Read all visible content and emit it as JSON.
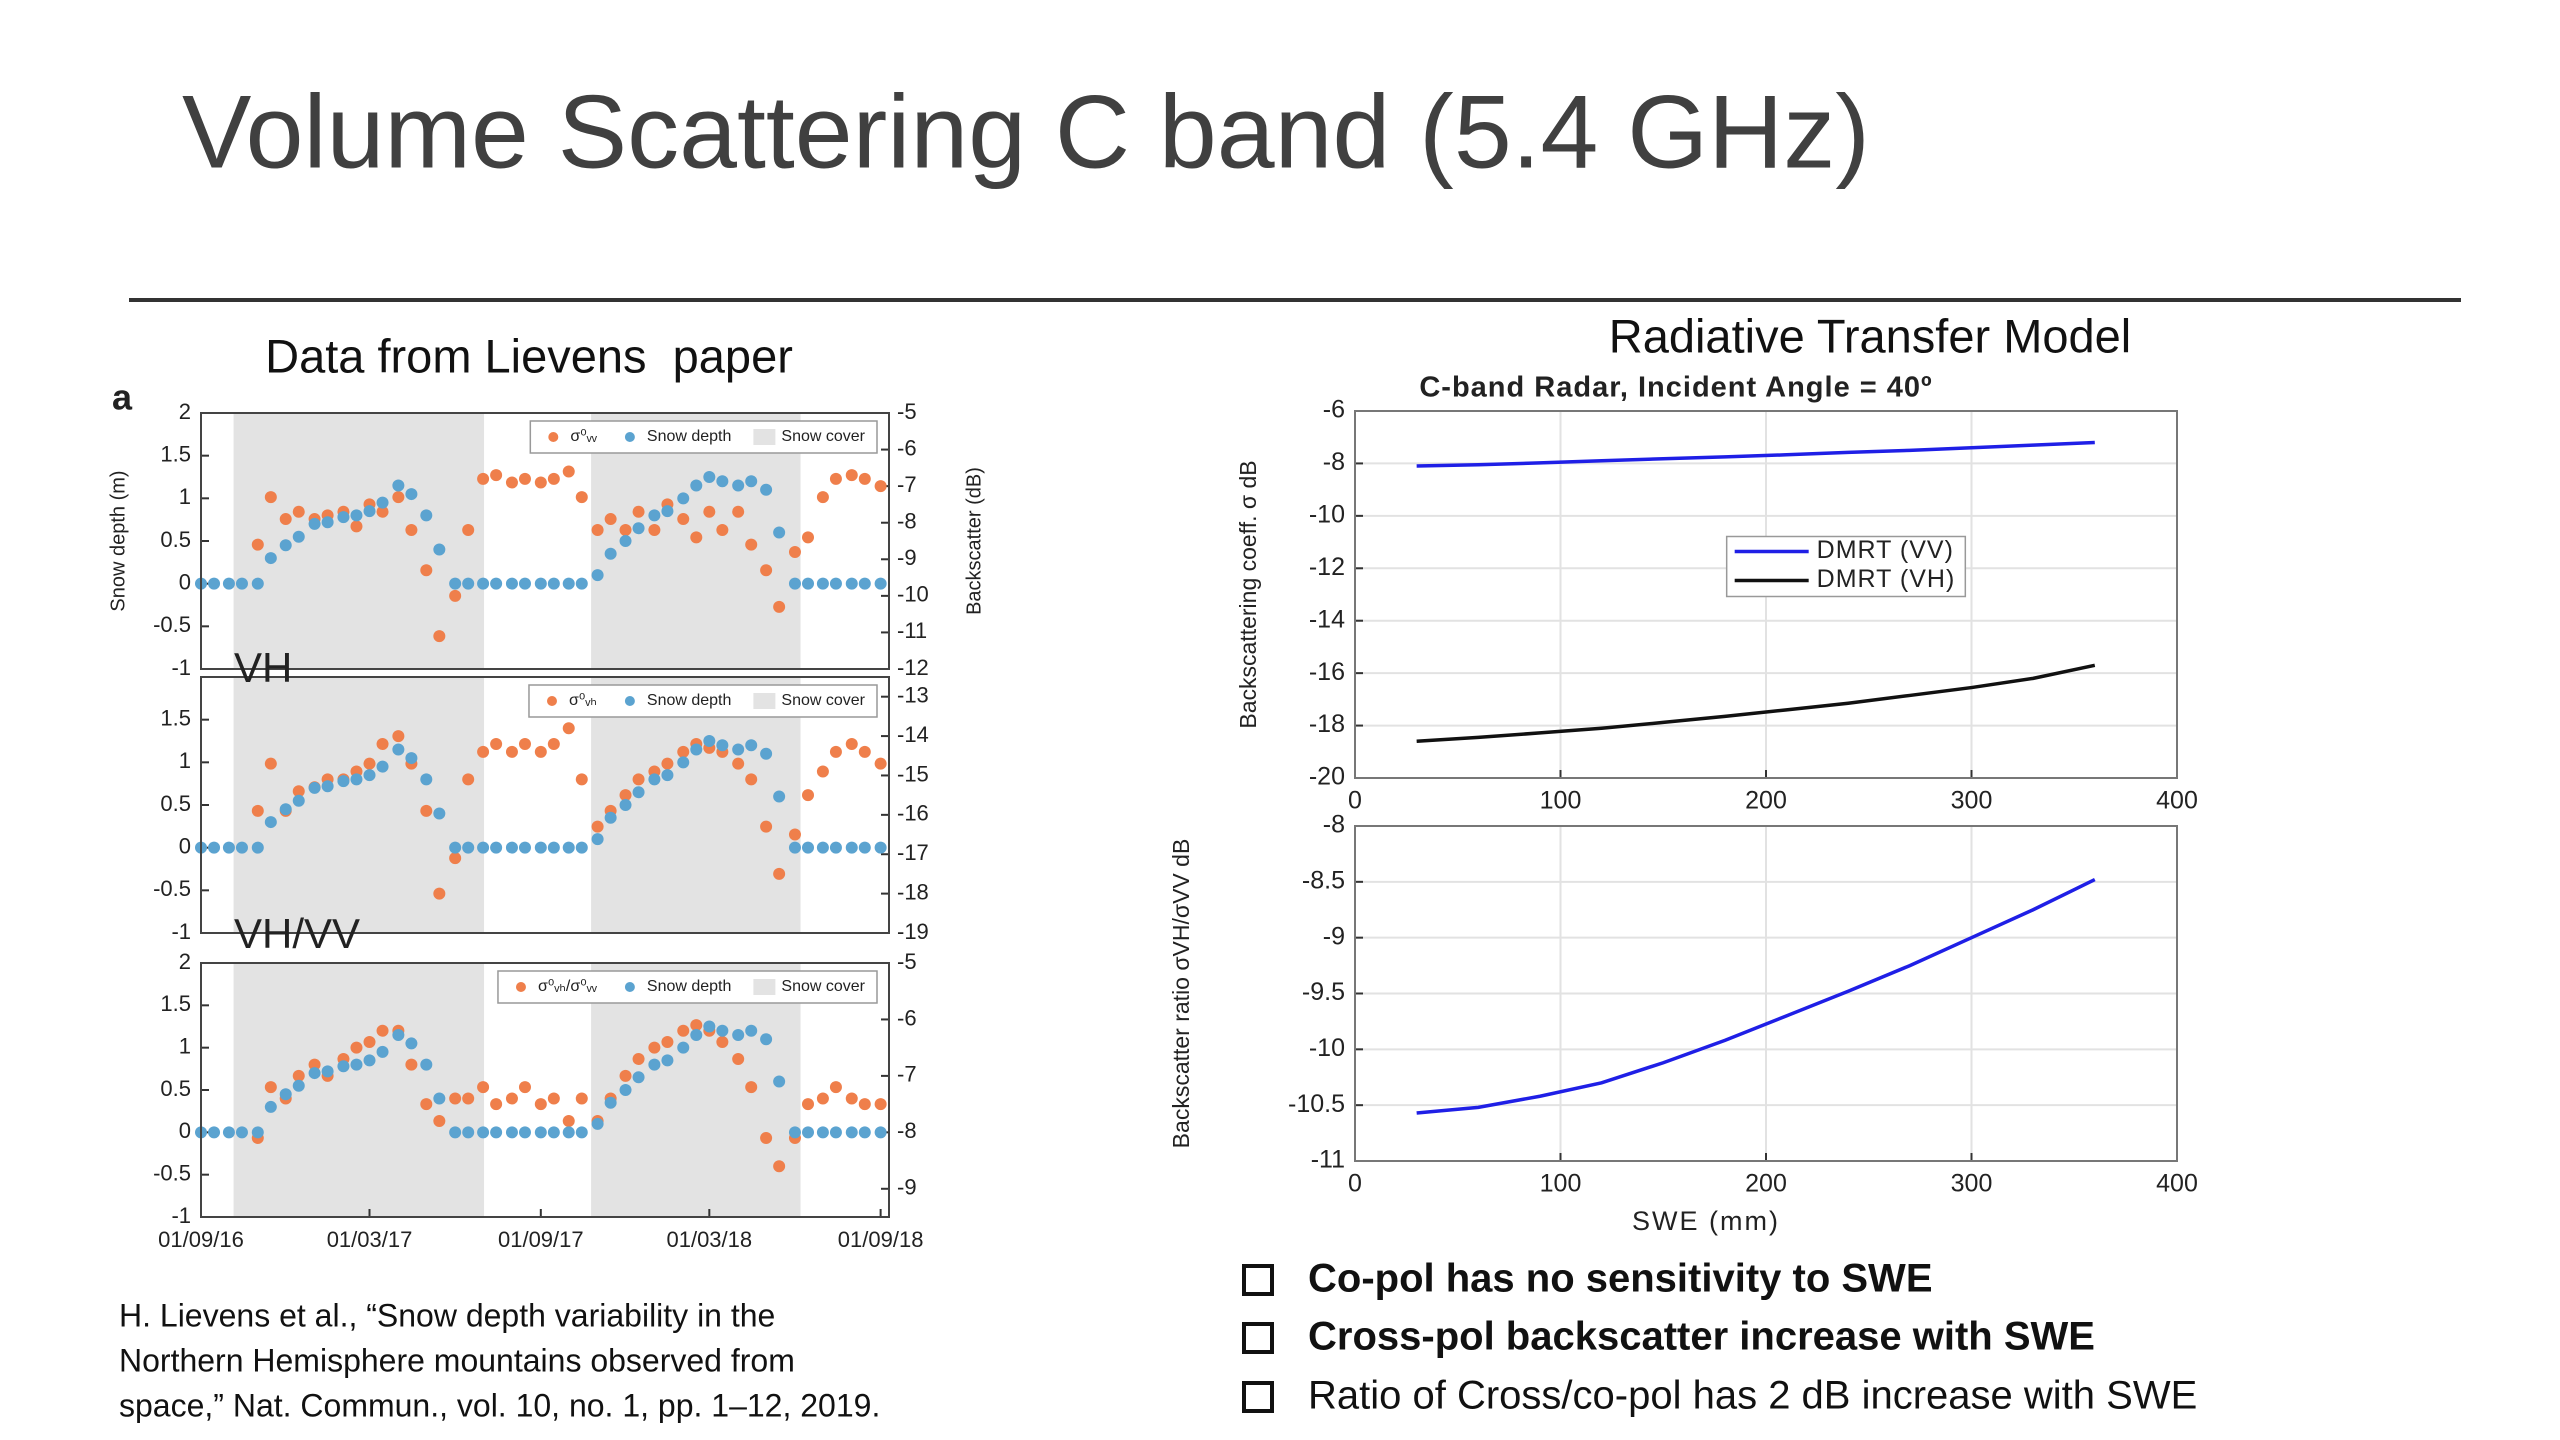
{
  "title": "Volume Scattering C band (5.4 GHz)",
  "left_heading": "Data from Lievens  paper",
  "right_heading": "Radiative Transfer Model",
  "citation": [
    "H. Lievens et al., “Snow depth variability in the",
    "Northern Hemisphere mountains observed from",
    "space,” Nat. Commun., vol. 10, no. 1, pp. 1–12, 2019."
  ],
  "bullets": [
    "Co-pol has no sensitivity to SWE",
    "Cross-pol backscatter increase with SWE",
    "Ratio of Cross/co-pol has 2 dB increase with SWE"
  ],
  "chart_data": [
    {
      "type": "scatter",
      "panel_label": "a",
      "ylabel": "Snow depth (m)",
      "y2label": "Backscatter (dB)",
      "x": [
        "2016-09-01",
        "2016-09-15",
        "2016-10-01",
        "2016-10-15",
        "2016-11-01",
        "2016-11-15",
        "2016-12-01",
        "2016-12-15",
        "2017-01-01",
        "2017-01-15",
        "2017-02-01",
        "2017-02-15",
        "2017-03-01",
        "2017-03-15",
        "2017-04-01",
        "2017-04-15",
        "2017-05-01",
        "2017-05-15",
        "2017-06-01",
        "2017-06-15",
        "2017-07-01",
        "2017-07-15",
        "2017-08-01",
        "2017-08-15",
        "2017-09-01",
        "2017-09-15",
        "2017-10-01",
        "2017-10-15",
        "2017-11-01",
        "2017-11-15",
        "2017-12-01",
        "2017-12-15",
        "2018-01-01",
        "2018-01-15",
        "2018-02-01",
        "2018-02-15",
        "2018-03-01",
        "2018-03-15",
        "2018-04-01",
        "2018-04-15",
        "2018-05-01",
        "2018-05-15",
        "2018-06-01",
        "2018-06-15",
        "2018-07-01",
        "2018-07-15",
        "2018-08-01",
        "2018-08-15",
        "2018-09-01"
      ],
      "xlim": [
        "2016-09-01",
        "2018-09-10"
      ],
      "ylim": [
        -1,
        2
      ],
      "yticks": [
        -1,
        -0.5,
        0,
        0.5,
        1,
        1.5,
        2
      ],
      "y2lim": [
        -12,
        -5
      ],
      "y2ticks": [
        -12,
        -11,
        -10,
        -9,
        -8,
        -7,
        -6,
        -5
      ],
      "legend": "upper right",
      "snow_cover": {
        "name": "Snow cover",
        "color": "#e3e3e3",
        "periods": [
          [
            "2016-10-06",
            "2017-07-02"
          ],
          [
            "2017-10-25",
            "2018-06-07"
          ]
        ]
      },
      "series": [
        {
          "name": "σ⁰ᵥᵥ",
          "color": "#ef7f4b",
          "axis": "y2",
          "values": [
            null,
            null,
            null,
            null,
            -8.6,
            -7.3,
            -7.9,
            -7.7,
            -7.9,
            -7.8,
            -7.7,
            -8.1,
            -7.5,
            -7.7,
            -7.3,
            -8.2,
            -9.3,
            -11.1,
            -10.0,
            -8.2,
            -6.8,
            -6.7,
            -6.9,
            -6.8,
            -6.9,
            -6.8,
            -6.6,
            -7.3,
            -8.2,
            -7.9,
            -8.2,
            -7.7,
            -8.2,
            -7.5,
            -7.9,
            -8.4,
            -7.7,
            -8.2,
            -7.7,
            -8.6,
            -9.3,
            -10.3,
            -8.8,
            -8.4,
            -7.3,
            -6.8,
            -6.7,
            -6.8,
            -7.0
          ]
        },
        {
          "name": "Snow depth",
          "color": "#5ba3d0",
          "values": [
            0,
            0,
            0,
            0,
            0,
            0.3,
            0.45,
            0.55,
            0.7,
            0.72,
            0.78,
            0.8,
            0.85,
            0.95,
            1.15,
            1.05,
            0.8,
            0.4,
            0,
            0,
            0,
            0,
            0,
            0,
            0,
            0,
            0,
            0,
            0.1,
            0.35,
            0.5,
            0.65,
            0.8,
            0.85,
            1.0,
            1.15,
            1.25,
            1.2,
            1.15,
            1.2,
            1.1,
            0.6,
            0,
            0,
            0,
            0,
            0,
            0,
            0
          ]
        }
      ]
    },
    {
      "type": "scatter",
      "panel_label": "VH",
      "x": [
        "2016-09-01",
        "2016-09-15",
        "2016-10-01",
        "2016-10-15",
        "2016-11-01",
        "2016-11-15",
        "2016-12-01",
        "2016-12-15",
        "2017-01-01",
        "2017-01-15",
        "2017-02-01",
        "2017-02-15",
        "2017-03-01",
        "2017-03-15",
        "2017-04-01",
        "2017-04-15",
        "2017-05-01",
        "2017-05-15",
        "2017-06-01",
        "2017-06-15",
        "2017-07-01",
        "2017-07-15",
        "2017-08-01",
        "2017-08-15",
        "2017-09-01",
        "2017-09-15",
        "2017-10-01",
        "2017-10-15",
        "2017-11-01",
        "2017-11-15",
        "2017-12-01",
        "2017-12-15",
        "2018-01-01",
        "2018-01-15",
        "2018-02-01",
        "2018-02-15",
        "2018-03-01",
        "2018-03-15",
        "2018-04-01",
        "2018-04-15",
        "2018-05-01",
        "2018-05-15",
        "2018-06-01",
        "2018-06-15",
        "2018-07-01",
        "2018-07-15",
        "2018-08-01",
        "2018-08-15",
        "2018-09-01"
      ],
      "xlim": [
        "2016-09-01",
        "2018-09-10"
      ],
      "ylim": [
        -1,
        2
      ],
      "yticks": [
        -1,
        -0.5,
        0,
        0.5,
        1,
        1.5
      ],
      "y2lim": [
        -19,
        -12.5
      ],
      "y2ticks": [
        -19,
        -18,
        -17,
        -16,
        -15,
        -14,
        -13
      ],
      "legend": "upper right",
      "snow_cover": {
        "name": "Snow cover",
        "color": "#e3e3e3",
        "periods": [
          [
            "2016-10-06",
            "2017-07-02"
          ],
          [
            "2017-10-25",
            "2018-06-07"
          ]
        ]
      },
      "series": [
        {
          "name": "σ⁰ᵥₕ",
          "color": "#ef7f4b",
          "axis": "y2",
          "values": [
            null,
            null,
            null,
            null,
            -15.9,
            -14.7,
            -15.9,
            -15.4,
            -15.3,
            -15.1,
            -15.1,
            -14.9,
            -14.7,
            -14.2,
            -14.0,
            -14.7,
            -15.9,
            -18.0,
            -17.1,
            -15.1,
            -14.4,
            -14.2,
            -14.4,
            -14.2,
            -14.4,
            -14.2,
            -13.8,
            -15.1,
            -16.3,
            -15.9,
            -15.5,
            -15.1,
            -14.9,
            -14.7,
            -14.4,
            -14.2,
            -14.3,
            -14.4,
            -14.7,
            -15.1,
            -16.3,
            -17.5,
            -16.5,
            -15.5,
            -14.9,
            -14.4,
            -14.2,
            -14.4,
            -14.7
          ]
        },
        {
          "name": "Snow depth",
          "color": "#5ba3d0",
          "values": [
            0,
            0,
            0,
            0,
            0,
            0.3,
            0.45,
            0.55,
            0.7,
            0.72,
            0.78,
            0.8,
            0.85,
            0.95,
            1.15,
            1.05,
            0.8,
            0.4,
            0,
            0,
            0,
            0,
            0,
            0,
            0,
            0,
            0,
            0,
            0.1,
            0.35,
            0.5,
            0.65,
            0.8,
            0.85,
            1.0,
            1.15,
            1.25,
            1.2,
            1.15,
            1.2,
            1.1,
            0.6,
            0,
            0,
            0,
            0,
            0,
            0,
            0
          ]
        }
      ]
    },
    {
      "type": "scatter",
      "panel_label": "VH/VV",
      "x": [
        "2016-09-01",
        "2016-09-15",
        "2016-10-01",
        "2016-10-15",
        "2016-11-01",
        "2016-11-15",
        "2016-12-01",
        "2016-12-15",
        "2017-01-01",
        "2017-01-15",
        "2017-02-01",
        "2017-02-15",
        "2017-03-01",
        "2017-03-15",
        "2017-04-01",
        "2017-04-15",
        "2017-05-01",
        "2017-05-15",
        "2017-06-01",
        "2017-06-15",
        "2017-07-01",
        "2017-07-15",
        "2017-08-01",
        "2017-08-15",
        "2017-09-01",
        "2017-09-15",
        "2017-10-01",
        "2017-10-15",
        "2017-11-01",
        "2017-11-15",
        "2017-12-01",
        "2017-12-15",
        "2018-01-01",
        "2018-01-15",
        "2018-02-01",
        "2018-02-15",
        "2018-03-01",
        "2018-03-15",
        "2018-04-01",
        "2018-04-15",
        "2018-05-01",
        "2018-05-15",
        "2018-06-01",
        "2018-06-15",
        "2018-07-01",
        "2018-07-15",
        "2018-08-01",
        "2018-08-15",
        "2018-09-01"
      ],
      "xlim": [
        "2016-09-01",
        "2018-09-10"
      ],
      "xticks": [
        {
          "value": "2016-09-01",
          "label": "01/09/16"
        },
        {
          "value": "2017-03-01",
          "label": "01/03/17"
        },
        {
          "value": "2017-09-01",
          "label": "01/09/17"
        },
        {
          "value": "2018-03-01",
          "label": "01/03/18"
        },
        {
          "value": "2018-09-01",
          "label": "01/09/18"
        }
      ],
      "ylim": [
        -1,
        2
      ],
      "yticks": [
        -1,
        -0.5,
        0,
        0.5,
        1,
        1.5,
        2
      ],
      "y2lim": [
        -9.5,
        -5
      ],
      "y2ticks": [
        -9,
        -8,
        -7,
        -6,
        -5
      ],
      "legend": "upper right",
      "snow_cover": {
        "name": "Snow cover",
        "color": "#e3e3e3",
        "periods": [
          [
            "2016-10-06",
            "2017-07-02"
          ],
          [
            "2017-10-25",
            "2018-06-07"
          ]
        ]
      },
      "series": [
        {
          "name": "σ⁰ᵥₕ/σ⁰ᵥᵥ",
          "color": "#ef7f4b",
          "axis": "y2",
          "values": [
            null,
            null,
            null,
            null,
            -8.1,
            -7.2,
            -7.4,
            -7.0,
            -6.8,
            -7.0,
            -6.7,
            -6.5,
            -6.4,
            -6.2,
            -6.2,
            -6.8,
            -7.5,
            -7.8,
            -7.4,
            -7.4,
            -7.2,
            -7.5,
            -7.4,
            -7.2,
            -7.5,
            -7.4,
            -7.8,
            -7.4,
            -7.8,
            -7.4,
            -7.0,
            -6.7,
            -6.5,
            -6.4,
            -6.2,
            -6.1,
            -6.2,
            -6.4,
            -6.7,
            -7.2,
            -8.1,
            -8.6,
            -8.1,
            -7.5,
            -7.4,
            -7.2,
            -7.4,
            -7.5,
            -7.5
          ]
        },
        {
          "name": "Snow depth",
          "color": "#5ba3d0",
          "values": [
            0,
            0,
            0,
            0,
            0,
            0.3,
            0.45,
            0.55,
            0.7,
            0.72,
            0.78,
            0.8,
            0.85,
            0.95,
            1.15,
            1.05,
            0.8,
            0.4,
            0,
            0,
            0,
            0,
            0,
            0,
            0,
            0,
            0,
            0,
            0.1,
            0.35,
            0.5,
            0.65,
            0.8,
            0.85,
            1.0,
            1.15,
            1.25,
            1.2,
            1.15,
            1.2,
            1.1,
            0.6,
            0,
            0,
            0,
            0,
            0,
            0,
            0
          ]
        }
      ]
    },
    {
      "type": "line",
      "title": "C-band Radar, Incident Angle = 40º",
      "ylabel": "Backscattering coeff. σ dB",
      "x": [
        30,
        60,
        90,
        120,
        150,
        180,
        210,
        240,
        270,
        300,
        330,
        360
      ],
      "xlim": [
        0,
        400
      ],
      "xticks": [
        0,
        100,
        200,
        300,
        400
      ],
      "ylim": [
        -20,
        -6
      ],
      "yticks": [
        -20,
        -18,
        -16,
        -14,
        -12,
        -10,
        -8,
        -6
      ],
      "grid": true,
      "legend": "center",
      "series": [
        {
          "name": "DMRT (VV)",
          "color": "#1f1fe6",
          "values": [
            -8.1,
            -8.05,
            -7.98,
            -7.9,
            -7.82,
            -7.75,
            -7.67,
            -7.58,
            -7.5,
            -7.4,
            -7.3,
            -7.2
          ]
        },
        {
          "name": "DMRT (VH)",
          "color": "#111111",
          "values": [
            -18.6,
            -18.45,
            -18.28,
            -18.1,
            -17.88,
            -17.65,
            -17.4,
            -17.15,
            -16.85,
            -16.55,
            -16.2,
            -15.7
          ]
        }
      ]
    },
    {
      "type": "line",
      "ylabel": "Backscatter ratio σVH/σVV dB",
      "xlabel": "SWE (mm)",
      "x": [
        30,
        60,
        90,
        120,
        150,
        180,
        210,
        240,
        270,
        300,
        330,
        360
      ],
      "xlim": [
        0,
        400
      ],
      "xticks": [
        0,
        100,
        200,
        300,
        400
      ],
      "ylim": [
        -11,
        -8
      ],
      "yticks": [
        -11,
        -10.5,
        -10,
        -9.5,
        -9,
        -8.5,
        -8
      ],
      "grid": true,
      "color": "#1f1fe6",
      "values": [
        -10.57,
        -10.52,
        -10.42,
        -10.3,
        -10.12,
        -9.92,
        -9.7,
        -9.48,
        -9.25,
        -9.0,
        -8.75,
        -8.48
      ]
    }
  ]
}
